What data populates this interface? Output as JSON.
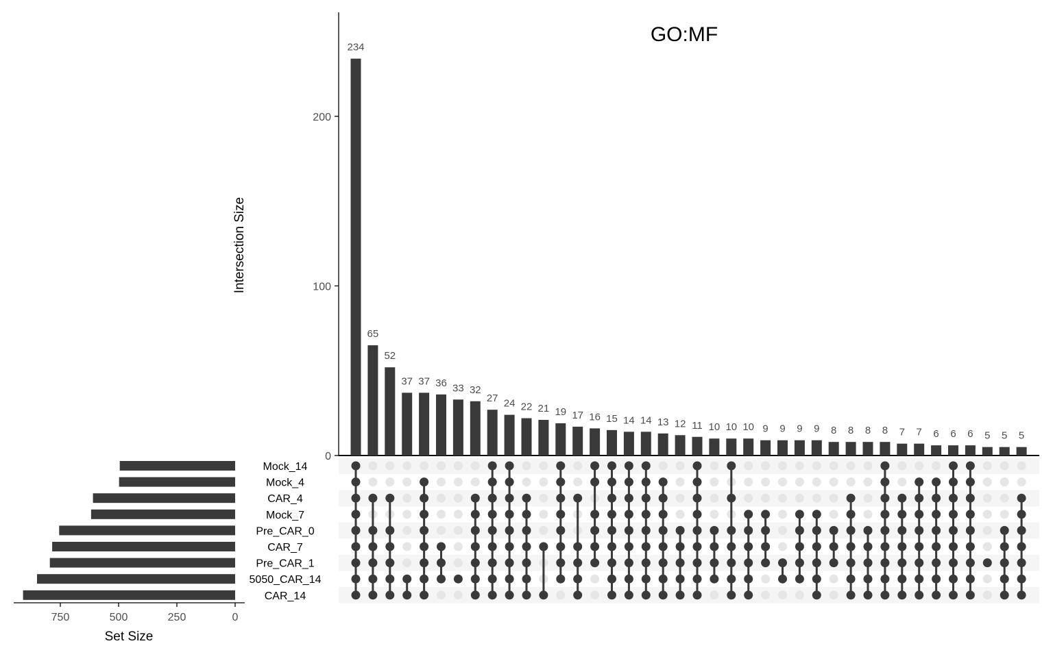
{
  "chart_data": {
    "type": "upset",
    "title": "GO:MF",
    "intersection_axis": {
      "label": "Intersection Size",
      "ylim": [
        0,
        250
      ],
      "ticks": [
        0,
        100,
        200
      ],
      "tick_labels": [
        "0",
        "100",
        "200"
      ]
    },
    "set_size_axis": {
      "label": "Set Size",
      "xlim": [
        0,
        950
      ],
      "ticks": [
        750,
        500,
        250,
        0
      ],
      "tick_labels": [
        "750",
        "500",
        "250",
        "0"
      ]
    },
    "sets": [
      "Mock_14",
      "Mock_4",
      "CAR_4",
      "Mock_7",
      "Pre_CAR_0",
      "CAR_7",
      "Pre_CAR_1",
      "5050_CAR_14",
      "CAR_14"
    ],
    "set_sizes": [
      495,
      498,
      610,
      618,
      755,
      785,
      795,
      850,
      910
    ],
    "intersections": [
      {
        "size": 234,
        "sets": [
          "Mock_14",
          "Mock_4",
          "CAR_4",
          "Mock_7",
          "Pre_CAR_0",
          "CAR_7",
          "Pre_CAR_1",
          "5050_CAR_14",
          "CAR_14"
        ]
      },
      {
        "size": 65,
        "sets": [
          "CAR_4",
          "Pre_CAR_0",
          "CAR_7",
          "Pre_CAR_1",
          "5050_CAR_14",
          "CAR_14"
        ]
      },
      {
        "size": 52,
        "sets": [
          "CAR_4",
          "Pre_CAR_0",
          "CAR_7",
          "Pre_CAR_1",
          "5050_CAR_14",
          "CAR_14"
        ]
      },
      {
        "size": 37,
        "sets": [
          "5050_CAR_14",
          "CAR_14"
        ]
      },
      {
        "size": 37,
        "sets": [
          "Mock_4",
          "CAR_4",
          "Mock_7",
          "Pre_CAR_0",
          "CAR_7",
          "Pre_CAR_1",
          "5050_CAR_14",
          "CAR_14"
        ]
      },
      {
        "size": 36,
        "sets": [
          "CAR_7",
          "Pre_CAR_1",
          "5050_CAR_14"
        ]
      },
      {
        "size": 33,
        "sets": [
          "5050_CAR_14"
        ]
      },
      {
        "size": 32,
        "sets": [
          "CAR_4",
          "Mock_7",
          "Pre_CAR_0",
          "CAR_7",
          "Pre_CAR_1",
          "5050_CAR_14",
          "CAR_14"
        ]
      },
      {
        "size": 27,
        "sets": [
          "Mock_14",
          "Mock_4",
          "CAR_4",
          "Mock_7",
          "Pre_CAR_0",
          "CAR_7",
          "Pre_CAR_1",
          "5050_CAR_14",
          "CAR_14"
        ]
      },
      {
        "size": 24,
        "sets": [
          "Mock_14",
          "Mock_4",
          "CAR_4",
          "Mock_7",
          "Pre_CAR_0",
          "CAR_7",
          "Pre_CAR_1",
          "5050_CAR_14",
          "CAR_14"
        ]
      },
      {
        "size": 22,
        "sets": [
          "CAR_4",
          "Mock_7",
          "Pre_CAR_0",
          "CAR_7",
          "Pre_CAR_1",
          "5050_CAR_14",
          "CAR_14"
        ]
      },
      {
        "size": 21,
        "sets": [
          "CAR_7",
          "CAR_14"
        ]
      },
      {
        "size": 19,
        "sets": [
          "Mock_14",
          "Mock_4",
          "CAR_4",
          "Mock_7",
          "Pre_CAR_0",
          "CAR_7",
          "Pre_CAR_1",
          "5050_CAR_14"
        ]
      },
      {
        "size": 17,
        "sets": [
          "CAR_4",
          "CAR_7",
          "Pre_CAR_1",
          "5050_CAR_14",
          "CAR_14"
        ]
      },
      {
        "size": 16,
        "sets": [
          "Mock_14",
          "Mock_4",
          "Mock_7",
          "Pre_CAR_0",
          "CAR_7",
          "Pre_CAR_1"
        ]
      },
      {
        "size": 15,
        "sets": [
          "Mock_14",
          "Mock_4",
          "CAR_4",
          "Mock_7",
          "Pre_CAR_0",
          "CAR_7",
          "Pre_CAR_1",
          "5050_CAR_14",
          "CAR_14"
        ]
      },
      {
        "size": 14,
        "sets": [
          "Mock_14",
          "Mock_4",
          "CAR_4",
          "Mock_7",
          "Pre_CAR_0",
          "CAR_7",
          "Pre_CAR_1",
          "5050_CAR_14",
          "CAR_14"
        ]
      },
      {
        "size": 14,
        "sets": [
          "Mock_14",
          "Mock_4",
          "CAR_4",
          "Mock_7",
          "Pre_CAR_0",
          "CAR_7",
          "Pre_CAR_1",
          "5050_CAR_14",
          "CAR_14"
        ]
      },
      {
        "size": 13,
        "sets": [
          "Mock_4",
          "CAR_4",
          "Mock_7",
          "Pre_CAR_0",
          "CAR_7",
          "Pre_CAR_1",
          "5050_CAR_14",
          "CAR_14"
        ]
      },
      {
        "size": 12,
        "sets": [
          "Pre_CAR_0",
          "CAR_7",
          "Pre_CAR_1",
          "5050_CAR_14",
          "CAR_14"
        ]
      },
      {
        "size": 11,
        "sets": [
          "Mock_14",
          "Mock_4",
          "CAR_4",
          "Mock_7",
          "Pre_CAR_0",
          "CAR_7",
          "Pre_CAR_1",
          "5050_CAR_14",
          "CAR_14"
        ]
      },
      {
        "size": 10,
        "sets": [
          "Pre_CAR_0",
          "CAR_7",
          "Pre_CAR_1",
          "5050_CAR_14"
        ]
      },
      {
        "size": 10,
        "sets": [
          "Mock_14",
          "CAR_4",
          "Pre_CAR_0",
          "CAR_7",
          "Pre_CAR_1",
          "5050_CAR_14",
          "CAR_14"
        ]
      },
      {
        "size": 10,
        "sets": [
          "Mock_7",
          "Pre_CAR_0",
          "CAR_7",
          "Pre_CAR_1",
          "5050_CAR_14",
          "CAR_14"
        ]
      },
      {
        "size": 9,
        "sets": [
          "Mock_7",
          "Pre_CAR_0",
          "CAR_7",
          "Pre_CAR_1"
        ]
      },
      {
        "size": 9,
        "sets": [
          "Pre_CAR_1",
          "5050_CAR_14"
        ]
      },
      {
        "size": 9,
        "sets": [
          "Mock_7",
          "Pre_CAR_0",
          "CAR_7",
          "Pre_CAR_1",
          "5050_CAR_14"
        ]
      },
      {
        "size": 9,
        "sets": [
          "Mock_7",
          "Pre_CAR_0",
          "CAR_7",
          "Pre_CAR_1",
          "5050_CAR_14",
          "CAR_14"
        ]
      },
      {
        "size": 8,
        "sets": [
          "Pre_CAR_0",
          "CAR_7",
          "Pre_CAR_1"
        ]
      },
      {
        "size": 8,
        "sets": [
          "CAR_4",
          "Mock_7",
          "Pre_CAR_0",
          "CAR_7",
          "Pre_CAR_1",
          "5050_CAR_14",
          "CAR_14"
        ]
      },
      {
        "size": 8,
        "sets": [
          "Pre_CAR_0",
          "CAR_7",
          "Pre_CAR_1",
          "5050_CAR_14",
          "CAR_14"
        ]
      },
      {
        "size": 8,
        "sets": [
          "Mock_14",
          "Mock_4",
          "CAR_4",
          "Mock_7",
          "Pre_CAR_0",
          "CAR_7",
          "Pre_CAR_1",
          "5050_CAR_14",
          "CAR_14"
        ]
      },
      {
        "size": 7,
        "sets": [
          "CAR_4",
          "Mock_7",
          "Pre_CAR_0",
          "CAR_7",
          "Pre_CAR_1",
          "5050_CAR_14",
          "CAR_14"
        ]
      },
      {
        "size": 7,
        "sets": [
          "Mock_4",
          "CAR_4",
          "Mock_7",
          "Pre_CAR_0",
          "CAR_7",
          "Pre_CAR_1",
          "5050_CAR_14",
          "CAR_14"
        ]
      },
      {
        "size": 6,
        "sets": [
          "Mock_4",
          "CAR_4",
          "Mock_7",
          "Pre_CAR_0",
          "CAR_7",
          "Pre_CAR_1",
          "5050_CAR_14",
          "CAR_14"
        ]
      },
      {
        "size": 6,
        "sets": [
          "Mock_14",
          "Mock_4",
          "CAR_4",
          "Mock_7",
          "Pre_CAR_0",
          "CAR_7",
          "Pre_CAR_1",
          "5050_CAR_14",
          "CAR_14"
        ]
      },
      {
        "size": 6,
        "sets": [
          "Mock_14",
          "Mock_4",
          "CAR_4",
          "Mock_7",
          "Pre_CAR_0",
          "CAR_7",
          "Pre_CAR_1",
          "5050_CAR_14",
          "CAR_14"
        ]
      },
      {
        "size": 5,
        "sets": [
          "Pre_CAR_1"
        ]
      },
      {
        "size": 5,
        "sets": [
          "Pre_CAR_0",
          "CAR_7",
          "Pre_CAR_1",
          "5050_CAR_14",
          "CAR_14"
        ]
      },
      {
        "size": 5,
        "sets": [
          "CAR_4",
          "Mock_7",
          "Pre_CAR_0",
          "CAR_7",
          "Pre_CAR_1",
          "5050_CAR_14",
          "CAR_14"
        ]
      }
    ],
    "colors": {
      "bar": "#3a3a3a",
      "dot_off": "#e6e6e6",
      "stripe": "#f5f5f5"
    }
  }
}
